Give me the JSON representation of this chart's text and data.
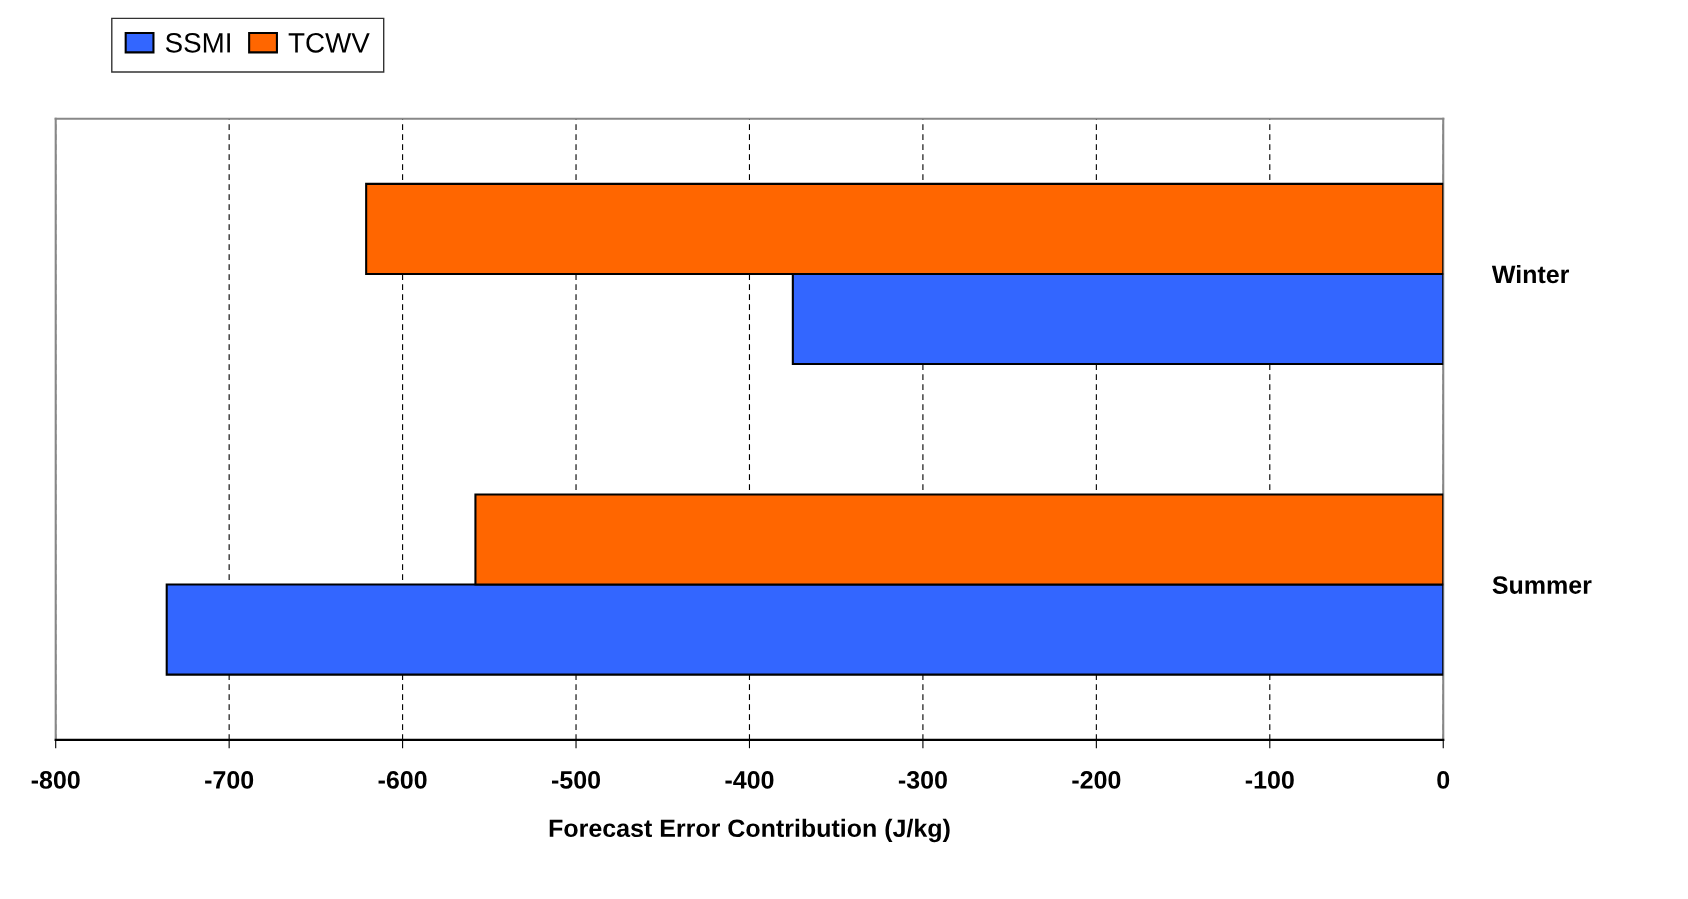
{
  "chart_data": {
    "type": "bar",
    "orientation": "horizontal",
    "categories": [
      "Winter",
      "Summer"
    ],
    "series": [
      {
        "name": "SSMI",
        "color": "#3366ff",
        "values": [
          -375,
          -736
        ]
      },
      {
        "name": "TCWV",
        "color": "#ff6600",
        "values": [
          -621,
          -558
        ]
      }
    ],
    "xlabel": "Forecast Error Contribution (J/kg)",
    "xlim": [
      -800,
      0
    ],
    "xticks": [
      -800,
      -700,
      -600,
      -500,
      -400,
      -300,
      -200,
      -100,
      0
    ],
    "grid": "x",
    "legend": "top left"
  }
}
